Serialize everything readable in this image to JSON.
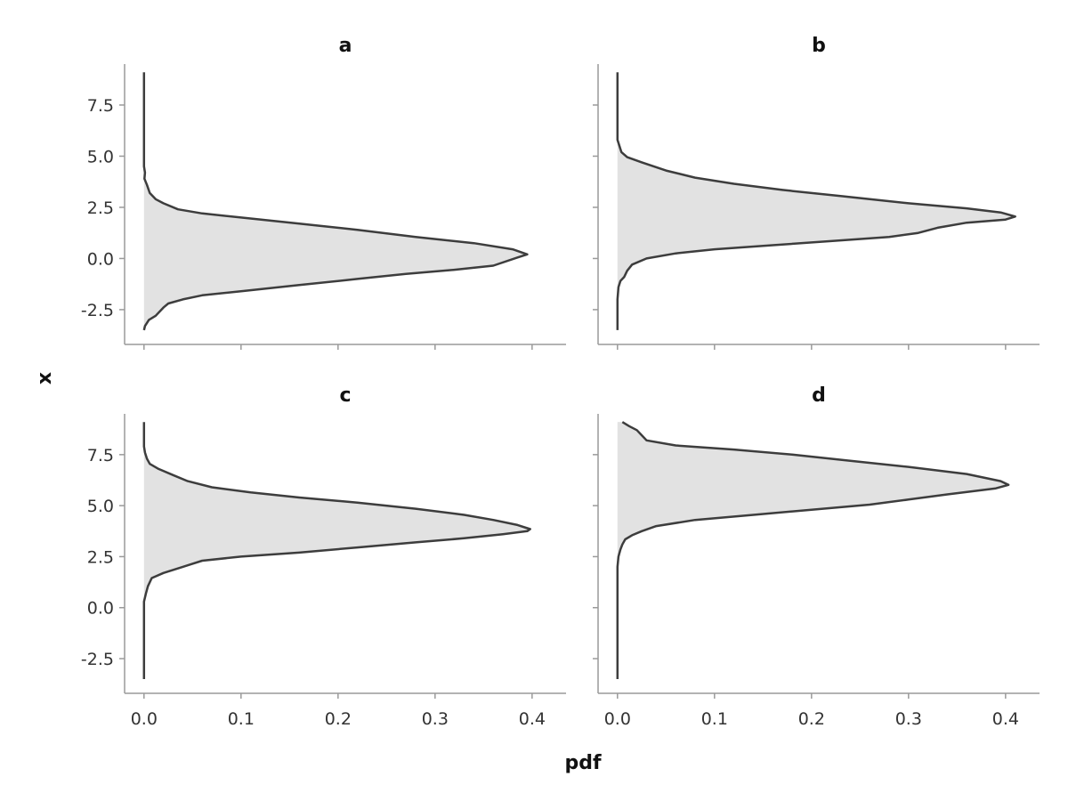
{
  "chart_data": {
    "type": "area",
    "xlabel": "pdf",
    "ylabel": "x",
    "xlim": [
      -0.02,
      0.435
    ],
    "ylim": [
      -4.2,
      9.5
    ],
    "xticks": [
      0.0,
      0.1,
      0.2,
      0.3,
      0.4
    ],
    "xtick_labels": [
      "0.0",
      "0.1",
      "0.2",
      "0.3",
      "0.4"
    ],
    "yticks": [
      -2.5,
      0.0,
      2.5,
      5.0,
      7.5
    ],
    "ytick_labels": [
      "-2.5",
      "0.0",
      "2.5",
      "5.0",
      "7.5"
    ],
    "grid": false,
    "fill_color": "#e2e2e2",
    "line_color": "#3d3d3d",
    "panels": [
      {
        "title": "a",
        "points": [
          [
            0,
            9.1
          ],
          [
            0,
            4.5
          ],
          [
            0.001,
            4.2
          ],
          [
            0.0005,
            3.9
          ],
          [
            0.003,
            3.6
          ],
          [
            0.006,
            3.2
          ],
          [
            0.012,
            2.9
          ],
          [
            0.02,
            2.7
          ],
          [
            0.035,
            2.4
          ],
          [
            0.06,
            2.2
          ],
          [
            0.1,
            2.0
          ],
          [
            0.16,
            1.7
          ],
          [
            0.22,
            1.4
          ],
          [
            0.28,
            1.05
          ],
          [
            0.34,
            0.75
          ],
          [
            0.38,
            0.45
          ],
          [
            0.395,
            0.2
          ],
          [
            0.385,
            0.05
          ],
          [
            0.36,
            -0.35
          ],
          [
            0.32,
            -0.55
          ],
          [
            0.27,
            -0.75
          ],
          [
            0.22,
            -1.0
          ],
          [
            0.16,
            -1.3
          ],
          [
            0.1,
            -1.6
          ],
          [
            0.06,
            -1.8
          ],
          [
            0.04,
            -2.0
          ],
          [
            0.025,
            -2.2
          ],
          [
            0.02,
            -2.4
          ],
          [
            0.012,
            -2.8
          ],
          [
            0.005,
            -3.0
          ],
          [
            0.001,
            -3.3
          ],
          [
            0,
            -3.5
          ]
        ]
      },
      {
        "title": "b",
        "points": [
          [
            0,
            9.1
          ],
          [
            0,
            5.8
          ],
          [
            0.002,
            5.5
          ],
          [
            0.004,
            5.2
          ],
          [
            0.01,
            4.95
          ],
          [
            0.025,
            4.7
          ],
          [
            0.05,
            4.3
          ],
          [
            0.08,
            3.95
          ],
          [
            0.12,
            3.65
          ],
          [
            0.17,
            3.35
          ],
          [
            0.23,
            3.05
          ],
          [
            0.3,
            2.7
          ],
          [
            0.36,
            2.45
          ],
          [
            0.395,
            2.25
          ],
          [
            0.41,
            2.05
          ],
          [
            0.4,
            1.9
          ],
          [
            0.36,
            1.75
          ],
          [
            0.33,
            1.5
          ],
          [
            0.31,
            1.25
          ],
          [
            0.28,
            1.05
          ],
          [
            0.22,
            0.85
          ],
          [
            0.16,
            0.65
          ],
          [
            0.1,
            0.45
          ],
          [
            0.06,
            0.25
          ],
          [
            0.03,
            0.0
          ],
          [
            0.015,
            -0.3
          ],
          [
            0.01,
            -0.6
          ],
          [
            0.007,
            -0.9
          ],
          [
            0.003,
            -1.1
          ],
          [
            0.001,
            -1.4
          ],
          [
            0,
            -2.0
          ],
          [
            0,
            -3.5
          ]
        ]
      },
      {
        "title": "c",
        "points": [
          [
            0,
            9.1
          ],
          [
            0,
            7.9
          ],
          [
            0.001,
            7.6
          ],
          [
            0.003,
            7.3
          ],
          [
            0.006,
            7.05
          ],
          [
            0.015,
            6.8
          ],
          [
            0.03,
            6.5
          ],
          [
            0.045,
            6.2
          ],
          [
            0.07,
            5.9
          ],
          [
            0.11,
            5.65
          ],
          [
            0.16,
            5.4
          ],
          [
            0.22,
            5.15
          ],
          [
            0.28,
            4.85
          ],
          [
            0.33,
            4.55
          ],
          [
            0.36,
            4.3
          ],
          [
            0.385,
            4.05
          ],
          [
            0.398,
            3.85
          ],
          [
            0.395,
            3.75
          ],
          [
            0.37,
            3.6
          ],
          [
            0.33,
            3.4
          ],
          [
            0.28,
            3.2
          ],
          [
            0.22,
            2.95
          ],
          [
            0.16,
            2.7
          ],
          [
            0.1,
            2.5
          ],
          [
            0.06,
            2.3
          ],
          [
            0.04,
            2.0
          ],
          [
            0.02,
            1.7
          ],
          [
            0.008,
            1.45
          ],
          [
            0.004,
            1.05
          ],
          [
            0.002,
            0.7
          ],
          [
            0,
            0.3
          ],
          [
            0,
            -3.5
          ]
        ]
      },
      {
        "title": "d",
        "points": [
          [
            0.005,
            9.1
          ],
          [
            0.012,
            8.9
          ],
          [
            0.02,
            8.7
          ],
          [
            0.025,
            8.45
          ],
          [
            0.03,
            8.2
          ],
          [
            0.06,
            7.95
          ],
          [
            0.12,
            7.75
          ],
          [
            0.18,
            7.5
          ],
          [
            0.24,
            7.2
          ],
          [
            0.3,
            6.9
          ],
          [
            0.36,
            6.55
          ],
          [
            0.395,
            6.2
          ],
          [
            0.403,
            6.02
          ],
          [
            0.39,
            5.85
          ],
          [
            0.34,
            5.55
          ],
          [
            0.3,
            5.3
          ],
          [
            0.26,
            5.05
          ],
          [
            0.2,
            4.8
          ],
          [
            0.14,
            4.55
          ],
          [
            0.08,
            4.3
          ],
          [
            0.04,
            4.0
          ],
          [
            0.025,
            3.75
          ],
          [
            0.015,
            3.55
          ],
          [
            0.008,
            3.35
          ],
          [
            0.005,
            3.1
          ],
          [
            0.003,
            2.85
          ],
          [
            0.001,
            2.5
          ],
          [
            0,
            2.0
          ],
          [
            0,
            -3.5
          ]
        ]
      }
    ]
  }
}
